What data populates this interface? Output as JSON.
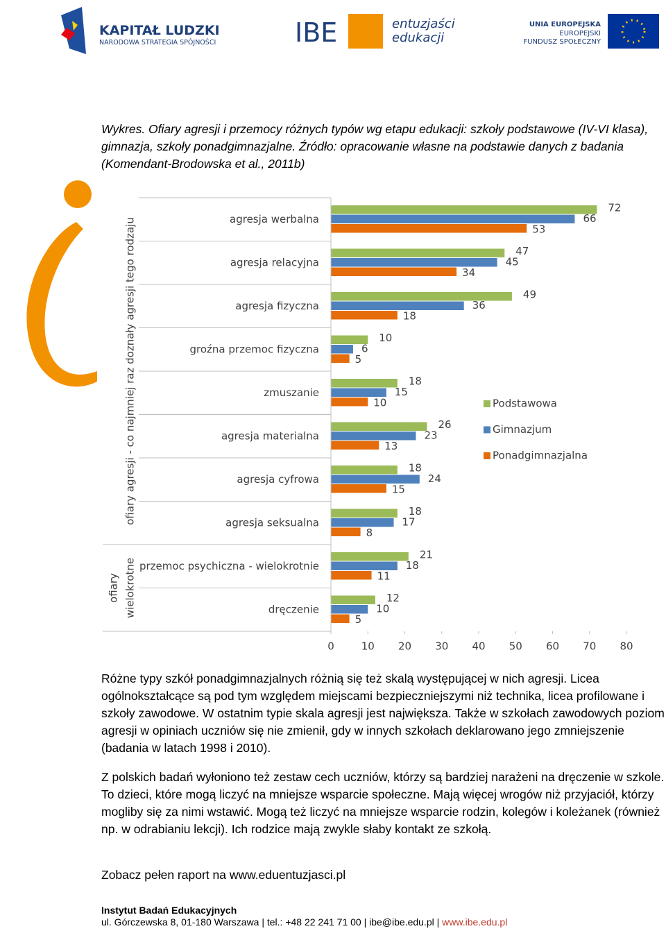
{
  "header": {
    "kl_title": "KAPITAŁ LUDZKI",
    "kl_subtitle": "NARODOWA STRATEGIA SPÓJNOŚCI",
    "ibe": "IBE",
    "ee_line1": "entuzjaści",
    "ee_line2": "edukacji",
    "eu_line1": "UNIA EUROPEJSKA",
    "eu_line2": "EUROPEJSKI",
    "eu_line3": "FUNDUSZ SPOŁECZNY"
  },
  "caption": "Wykres. Ofiary agresji i przemocy różnych typów wg etapu edukacji: szkoły podstawowe (IV-VI klasa), gimnazja, szkoły ponadgimnazjalne. Źródło: opracowanie własne na podstawie danych z badania (Komendant-Brodowska et al., 2011b)",
  "chart_data": {
    "type": "bar",
    "orientation": "horizontal",
    "category_groups": [
      {
        "label_lines": [
          "ofiary agresji - co najmniej raz doznały agresji tego rodzaju"
        ],
        "categories": [
          "agresja werbalna",
          "agresja relacyjna",
          "agresja fizyczna",
          "groźna przemoc fizyczna",
          "zmuszanie",
          "agresja materialna",
          "agresja cyfrowa",
          "agresja seksualna"
        ]
      },
      {
        "label_lines": [
          "ofiary",
          "wielokrotne"
        ],
        "categories": [
          "przemoc psychiczna - wielokrotnie",
          "dręczenie"
        ]
      }
    ],
    "series": [
      {
        "name": "Podstawowa",
        "color": "#9bbb59",
        "values": [
          72,
          47,
          49,
          10,
          18,
          26,
          18,
          18,
          21,
          12
        ]
      },
      {
        "name": "Gimnazjum",
        "color": "#4f81bd",
        "values": [
          66,
          45,
          36,
          6,
          15,
          23,
          24,
          17,
          18,
          10
        ]
      },
      {
        "name": "Ponadgimnazjalna",
        "color": "#e46c0a",
        "values": [
          53,
          34,
          18,
          5,
          10,
          13,
          15,
          8,
          11,
          5
        ]
      }
    ],
    "xlim": [
      0,
      80
    ],
    "xticks": [
      0,
      10,
      20,
      30,
      40,
      50,
      60,
      70,
      80
    ],
    "legend": "right"
  },
  "paragraphs": [
    "Różne typy szkół ponadgimnazjalnych różnią się też skalą występującej w nich agresji. Licea ogólnokształcące są pod tym względem miejscami bezpieczniejszymi niż technika, licea profilowane i szkoły zawodowe. W ostatnim typie skala agresji jest największa. Także w szkołach zawodowych poziom agresji w opiniach uczniów się nie zmienił, gdy w innych szkołach deklarowano jego zmniejszenie (badania w latach 1998 i 2010).",
    "Z polskich badań wyłoniono też zestaw cech uczniów, którzy są bardziej narażeni na dręczenie w szkole. To dzieci, które mogą liczyć na mniejsze wsparcie społeczne. Mają więcej wrogów niż przyjaciół, którzy mogliby się za nimi wstawić. Mogą też liczyć na mniejsze wsparcie rodzin, kolegów i koleżanek (również np. w odrabianiu lekcji). Ich rodzice mają zwykle słaby kontakt ze szkołą.",
    "Zobacz pełen raport na www.eduentuzjasci.pl"
  ],
  "footer": {
    "institution": "Instytut Badań Edukacyjnych",
    "address": "ul. Górczewska 8, 01-180 Warszawa | tel.: +48 22 241 71 00 | ibe@ibe.edu.pl |",
    "link": "www.ibe.edu.pl"
  }
}
